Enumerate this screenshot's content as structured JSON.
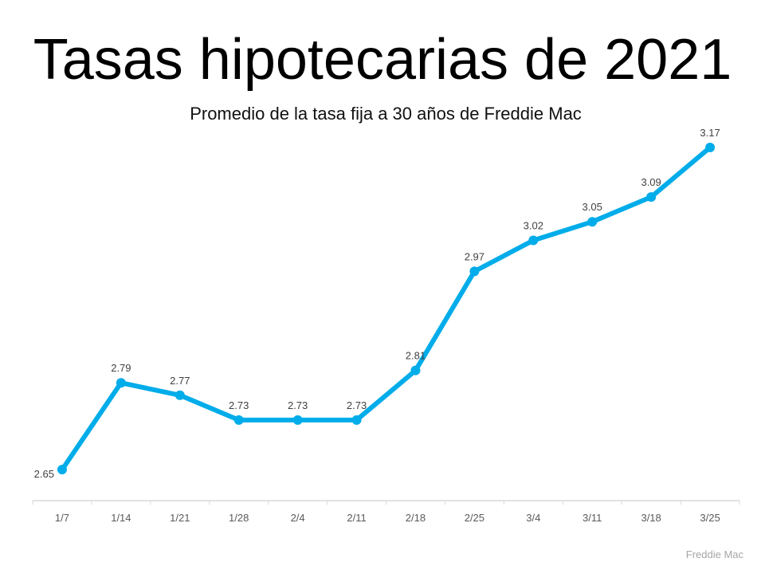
{
  "title": "Tasas hipotecarias de 2021",
  "subtitle": "Promedio de la tasa fija a 30 años de Freddie Mac",
  "source": "Freddie Mac",
  "colors": {
    "line": "#00ACE9",
    "axis": "#d9d9d9",
    "label": "#404040",
    "tick_label": "#595959"
  },
  "chart_data": {
    "type": "line",
    "title": "Tasas hipotecarias de 2021",
    "subtitle": "Promedio de la tasa fija a 30 años de Freddie Mac",
    "xlabel": "",
    "ylabel": "",
    "categories": [
      "1/7",
      "1/14",
      "1/21",
      "1/28",
      "2/4",
      "2/11",
      "2/18",
      "2/25",
      "3/4",
      "3/11",
      "3/18",
      "3/25"
    ],
    "series": [
      {
        "name": "Tasa fija a 30 años",
        "values": [
          2.65,
          2.79,
          2.77,
          2.73,
          2.73,
          2.73,
          2.81,
          2.97,
          3.02,
          3.05,
          3.09,
          3.17
        ]
      }
    ],
    "data_labels": true,
    "grid": false,
    "legend": "none",
    "source": "Freddie Mac"
  }
}
